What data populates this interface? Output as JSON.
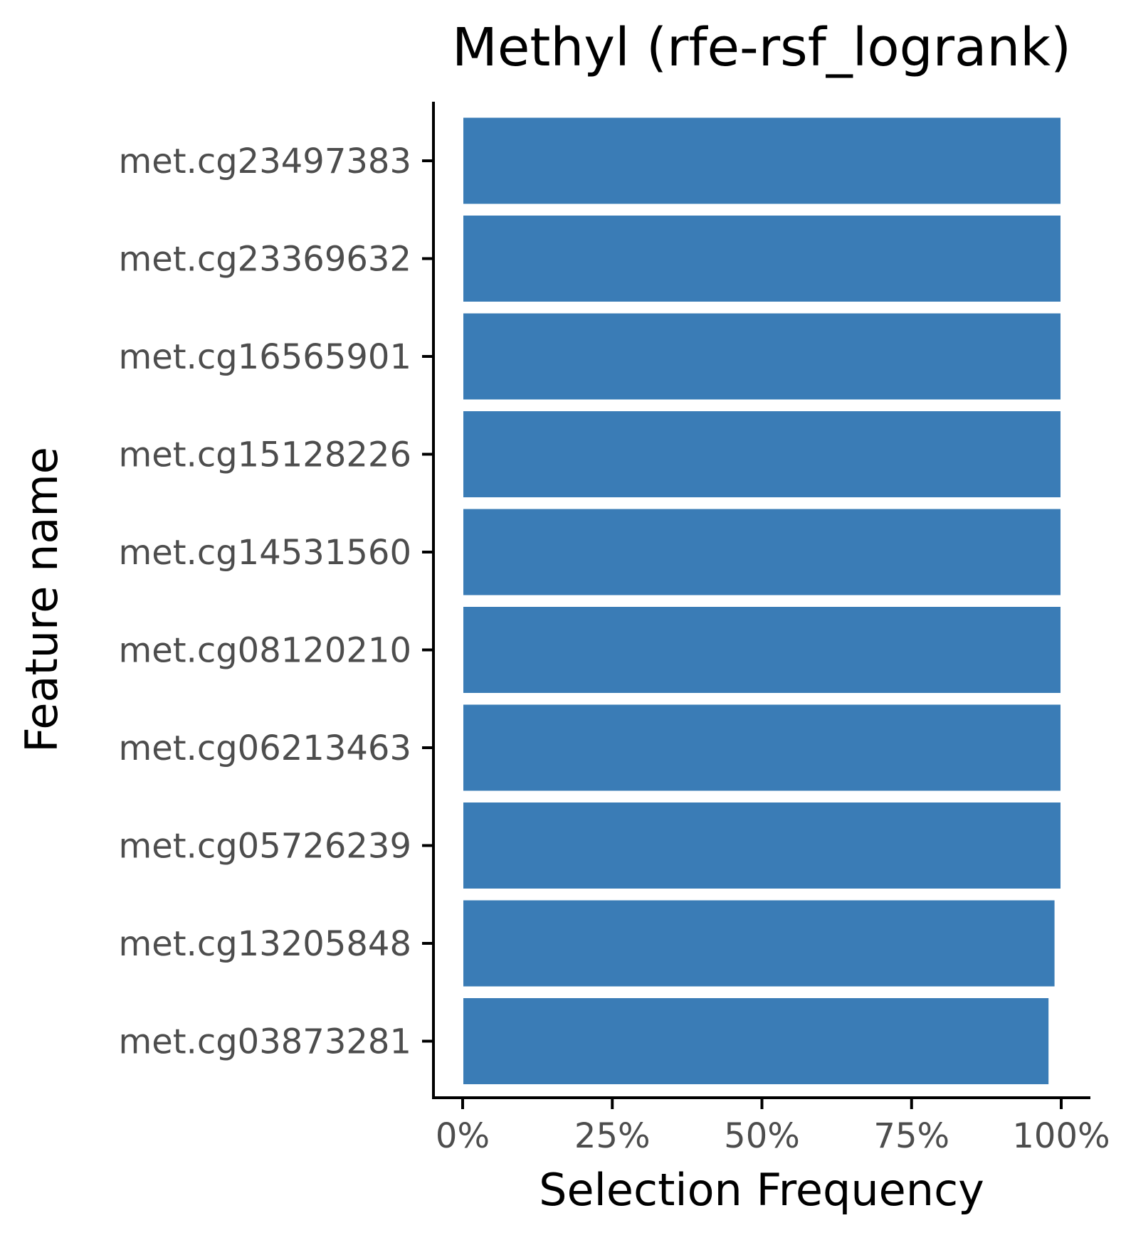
{
  "chart_data": {
    "type": "bar",
    "orientation": "horizontal",
    "title": "Methyl (rfe-rsf_logrank)",
    "xlabel": "Selection Frequency",
    "ylabel": "Feature name",
    "xlim": [
      0,
      1
    ],
    "x_ticks": [
      0,
      0.25,
      0.5,
      0.75,
      1.0
    ],
    "x_tick_labels": [
      "0%",
      "25%",
      "50%",
      "75%",
      "100%"
    ],
    "grid": false,
    "legend": "none",
    "bar_color": "#3a7cb6",
    "categories": [
      "met.cg23497383",
      "met.cg23369632",
      "met.cg16565901",
      "met.cg15128226",
      "met.cg14531560",
      "met.cg08120210",
      "met.cg06213463",
      "met.cg05726239",
      "met.cg13205848",
      "met.cg03873281"
    ],
    "values": [
      1.0,
      1.0,
      1.0,
      1.0,
      1.0,
      1.0,
      1.0,
      1.0,
      0.99,
      0.98
    ]
  }
}
